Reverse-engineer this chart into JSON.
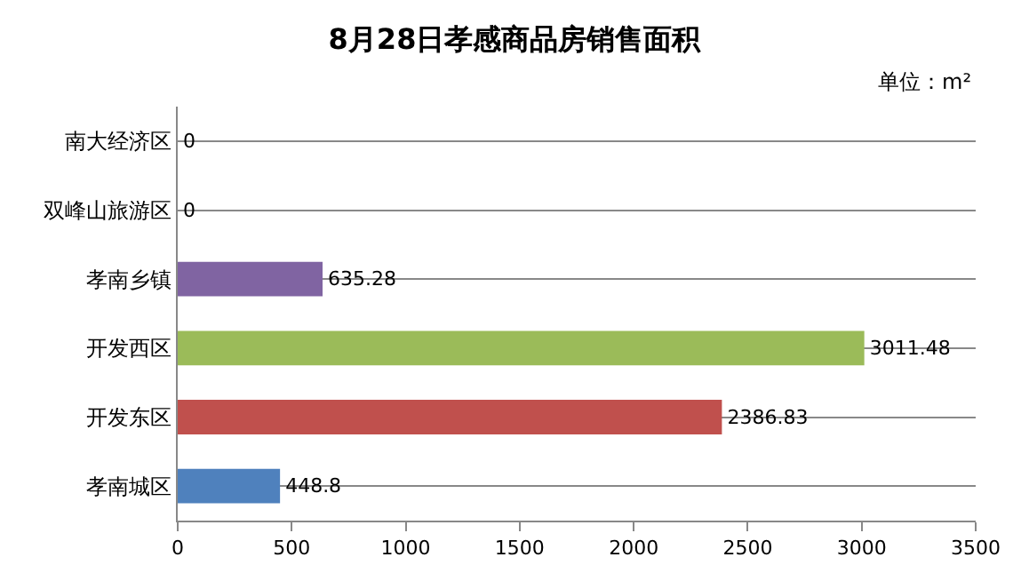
{
  "chart_data": {
    "type": "bar",
    "orientation": "horizontal",
    "title": "8月28日孝感商品房销售面积",
    "annotations": [
      "单位：m²"
    ],
    "categories": [
      "南大经济区",
      "双峰山旅游区",
      "孝南乡镇",
      "开发西区",
      "开发东区",
      "孝南城区"
    ],
    "values": [
      0,
      0,
      635.28,
      3011.48,
      2386.83,
      448.8
    ],
    "colors": [
      "#4f81bd",
      "#4f81bd",
      "#8064a2",
      "#9bbb59",
      "#c0504d",
      "#4f81bd"
    ],
    "xlim": [
      0,
      3500
    ],
    "xticks": [
      0,
      500,
      1000,
      1500,
      2000,
      2500,
      3000,
      3500
    ],
    "grid": "y",
    "data_labels": true
  }
}
